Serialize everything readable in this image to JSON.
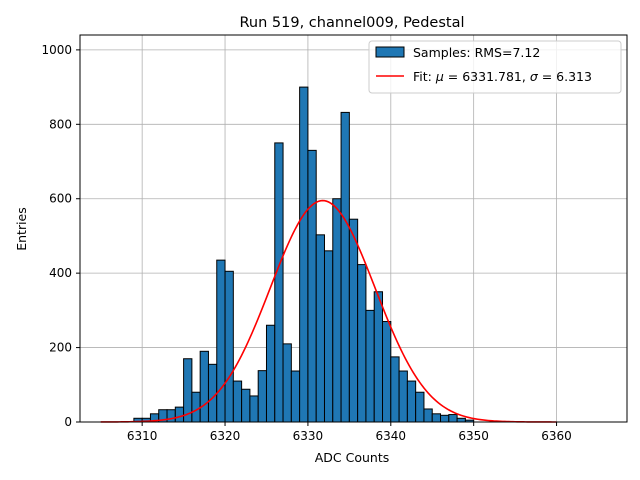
{
  "chart_data": {
    "type": "bar",
    "title": "Run 519, channel009, Pedestal",
    "xlabel": "ADC Counts",
    "ylabel": "Entries",
    "xlim": [
      6302.5,
      6368.5
    ],
    "ylim": [
      0,
      1040
    ],
    "xticks": [
      6310,
      6320,
      6330,
      6340,
      6350,
      6360
    ],
    "yticks": [
      0,
      200,
      400,
      600,
      800,
      1000
    ],
    "grid": true,
    "legend_position": "top-right",
    "histogram": {
      "name": "Samples: RMS=7.12",
      "color": "#1f77b4",
      "edge_color": "#000000",
      "bin_width": 1,
      "bin_starts": [
        6309,
        6310,
        6311,
        6312,
        6313,
        6314,
        6315,
        6316,
        6317,
        6318,
        6319,
        6320,
        6321,
        6322,
        6323,
        6324,
        6325,
        6326,
        6327,
        6328,
        6329,
        6330,
        6331,
        6332,
        6333,
        6334,
        6335,
        6336,
        6337,
        6338,
        6339,
        6340,
        6341,
        6342,
        6343,
        6344,
        6345,
        6346,
        6347,
        6348,
        6349
      ],
      "values": [
        10,
        10,
        22,
        33,
        33,
        40,
        170,
        80,
        190,
        155,
        435,
        405,
        110,
        88,
        70,
        138,
        260,
        750,
        210,
        137,
        900,
        730,
        503,
        460,
        600,
        832,
        545,
        423,
        300,
        350,
        270,
        175,
        137,
        110,
        80,
        35,
        22,
        18,
        20,
        10,
        5
      ]
    },
    "fit": {
      "name_prefix": "Fit: ",
      "name_mu_symbol": "μ",
      "name_mu_text": " = 6331.781, ",
      "name_sigma_symbol": "σ",
      "name_sigma_text": " = 6.313",
      "color": "#ff0000",
      "mu": 6331.781,
      "sigma": 6.313,
      "amplitude": 595,
      "x_range": [
        6305,
        6360
      ]
    }
  }
}
